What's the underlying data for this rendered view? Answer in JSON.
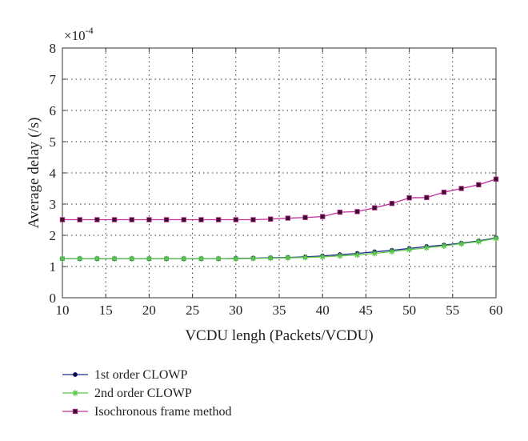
{
  "chart_data": {
    "type": "line",
    "title": "",
    "xlabel": "VCDU lengh (Packets/VCDU)",
    "ylabel": "Average delay (/s)",
    "y_multiplier": {
      "base": "×10",
      "exponent": "-4"
    },
    "xlim": [
      10,
      60
    ],
    "ylim": [
      0,
      8
    ],
    "x_ticks": [
      10,
      15,
      20,
      25,
      30,
      35,
      40,
      45,
      50,
      55,
      60
    ],
    "y_ticks": [
      0,
      1,
      2,
      3,
      4,
      5,
      6,
      7,
      8
    ],
    "grid": true,
    "legend_position": "bottom-left",
    "x": [
      10,
      12,
      14,
      16,
      18,
      20,
      22,
      24,
      26,
      28,
      30,
      32,
      34,
      36,
      38,
      40,
      42,
      44,
      46,
      48,
      50,
      52,
      54,
      56,
      58,
      60
    ],
    "series": [
      {
        "name": "1st order CLOWP",
        "color": "#1f2a8a",
        "marker": "dot",
        "values": [
          1.25,
          1.25,
          1.25,
          1.25,
          1.25,
          1.25,
          1.25,
          1.25,
          1.25,
          1.25,
          1.26,
          1.27,
          1.28,
          1.29,
          1.31,
          1.34,
          1.38,
          1.42,
          1.47,
          1.52,
          1.58,
          1.64,
          1.69,
          1.75,
          1.82,
          1.92
        ]
      },
      {
        "name": "2nd order CLOWP",
        "color": "#5cc84a",
        "marker": "star",
        "values": [
          1.25,
          1.25,
          1.25,
          1.25,
          1.25,
          1.25,
          1.25,
          1.25,
          1.25,
          1.25,
          1.25,
          1.26,
          1.27,
          1.28,
          1.29,
          1.31,
          1.34,
          1.37,
          1.42,
          1.48,
          1.54,
          1.6,
          1.66,
          1.73,
          1.8,
          1.9
        ]
      },
      {
        "name": "Isochronous frame method",
        "color": "#c0309a",
        "marker": "square",
        "values": [
          2.5,
          2.5,
          2.5,
          2.5,
          2.5,
          2.5,
          2.5,
          2.5,
          2.5,
          2.5,
          2.5,
          2.5,
          2.52,
          2.55,
          2.57,
          2.6,
          2.74,
          2.76,
          2.88,
          3.02,
          3.2,
          3.21,
          3.38,
          3.5,
          3.62,
          3.8
        ]
      }
    ]
  }
}
